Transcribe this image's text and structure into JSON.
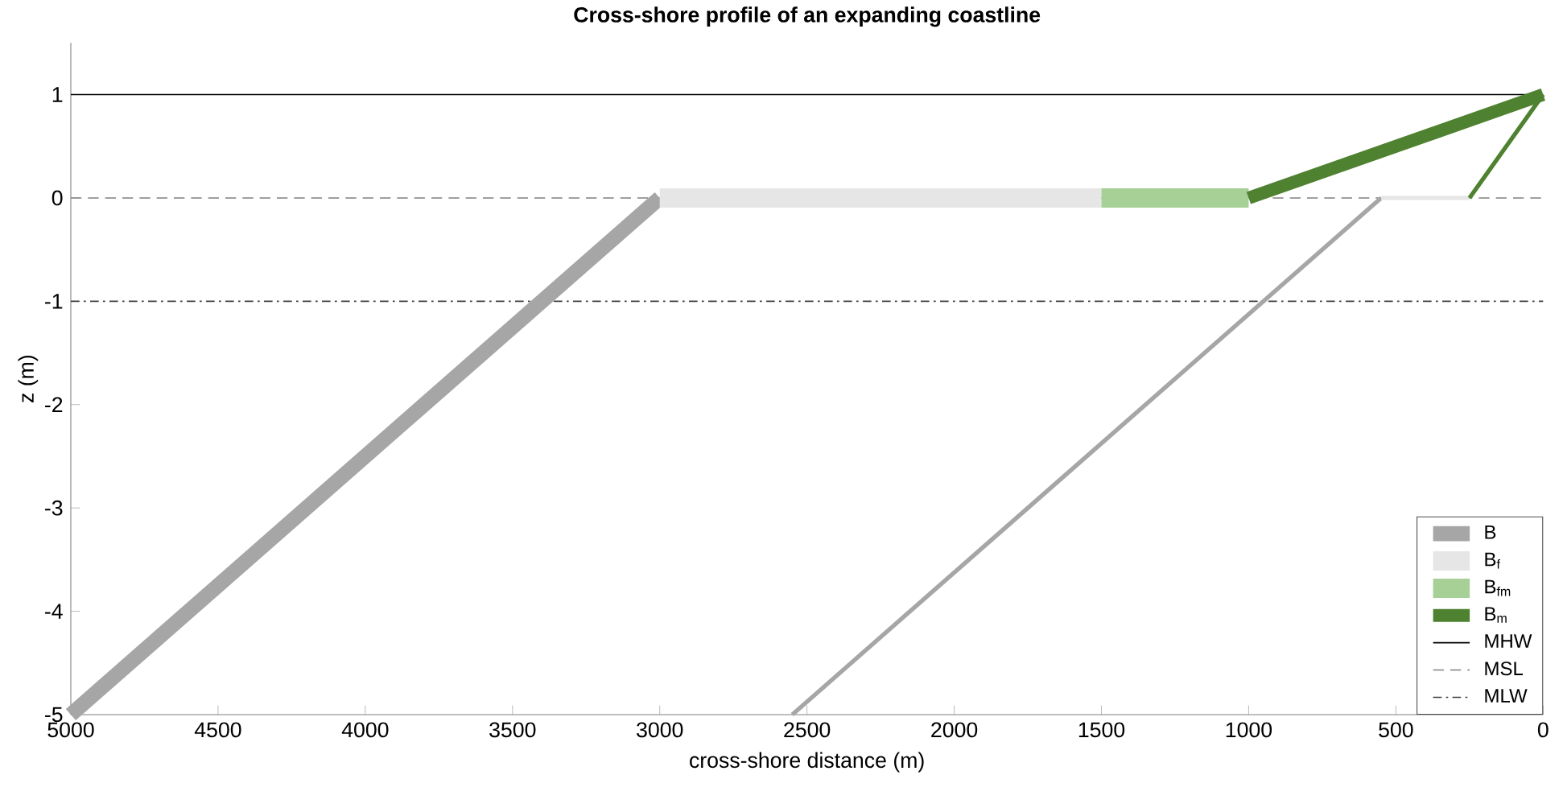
{
  "chart_data": {
    "type": "line",
    "title": "Cross-shore profile of an expanding coastline",
    "xlabel": "cross-shore distance (m)",
    "ylabel": "z (m)",
    "xlim": [
      5000,
      0
    ],
    "ylim": [
      -5,
      1.5
    ],
    "xticks": [
      5000,
      4500,
      4000,
      3500,
      3000,
      2500,
      2000,
      1500,
      1000,
      500,
      0
    ],
    "yticks": [
      -5,
      -4,
      -3,
      -2,
      -1,
      0,
      1
    ],
    "grid": false,
    "legend": "bottom right",
    "marker": "none",
    "line_style": "solid",
    "series": [
      {
        "name": "B",
        "color": "#a6a6a6",
        "x": [
          5000,
          3000
        ],
        "values": [
          -5,
          0
        ]
      },
      {
        "name": "B$_{f}$",
        "color": "#e6e6e6",
        "x": [
          3000,
          1500
        ],
        "values": [
          0,
          0
        ]
      },
      {
        "name": "B$_{fm}$",
        "color": "#a6d096",
        "x": [
          1500,
          1000
        ],
        "values": [
          0,
          0
        ]
      },
      {
        "name": "B$_{m}$",
        "color": "#4f8230",
        "x": [
          1000,
          0
        ],
        "values": [
          0,
          1
        ]
      },
      {
        "color": "#a6a6a6",
        "x": [
          2550,
          550
        ],
        "values": [
          -5,
          0
        ]
      },
      {
        "color": "#e6e6e6",
        "x": [
          550,
          250
        ],
        "values": [
          0,
          0
        ]
      },
      {
        "color": "#4f8230",
        "x": [
          250,
          0
        ],
        "values": [
          0,
          1
        ]
      }
    ],
    "ref_lines": [
      {
        "axis": "y",
        "value": 1,
        "label": "MHW",
        "color": "#000000",
        "line_style": "solid"
      },
      {
        "axis": "y",
        "value": 0,
        "label": "MSL",
        "color": "#808080",
        "line_style": "dashed"
      },
      {
        "axis": "y",
        "value": -1,
        "label": "MLW",
        "color": "#404040",
        "line_style": "dashdot"
      }
    ]
  }
}
